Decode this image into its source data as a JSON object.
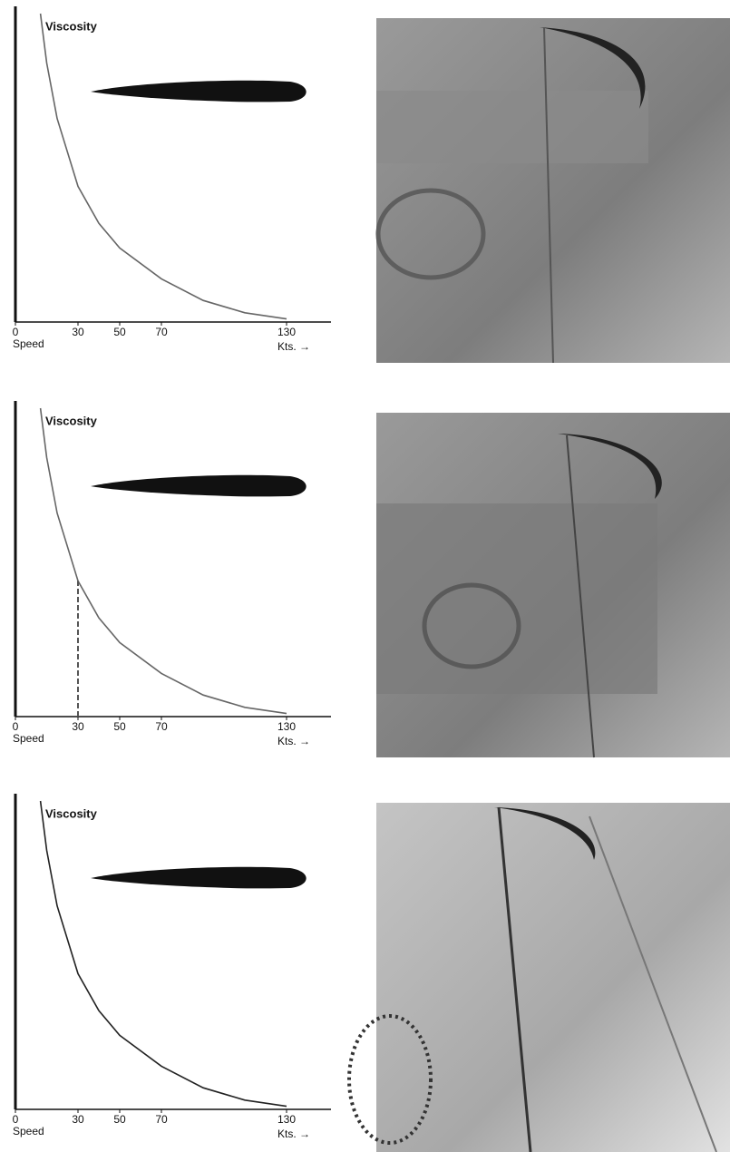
{
  "chart_data": [
    {
      "type": "line",
      "y_label": "Viscosity",
      "x_label": "Speed",
      "x_unit_label": "Kts. →",
      "x": [
        12,
        15,
        20,
        30,
        40,
        50,
        70,
        90,
        110,
        130
      ],
      "values": [
        100,
        84,
        66,
        44,
        32,
        24,
        14,
        7,
        3,
        1
      ],
      "color": "#666666",
      "xlim": [
        0,
        150
      ],
      "xticks": [
        0,
        30,
        50,
        70,
        130
      ],
      "ylim": [
        0,
        100
      ]
    },
    {
      "type": "line",
      "y_label": "Viscosity",
      "x_label": "Speed",
      "x_unit_label": "Kts. →",
      "x": [
        12,
        15,
        20,
        30,
        40,
        50,
        70,
        90,
        110,
        130
      ],
      "values": [
        100,
        84,
        66,
        44,
        32,
        24,
        14,
        7,
        3,
        1
      ],
      "color": "#666666",
      "xlim": [
        0,
        150
      ],
      "xticks": [
        0,
        30,
        50,
        70,
        130
      ],
      "ylim": [
        0,
        100
      ],
      "marker_x": 30
    },
    {
      "type": "line",
      "y_label": "Viscosity",
      "x_label": "Speed",
      "x_unit_label": "Kts. →",
      "x": [
        12,
        15,
        20,
        30,
        40,
        50,
        70,
        90,
        110,
        130
      ],
      "values": [
        100,
        84,
        66,
        44,
        32,
        24,
        14,
        7,
        3,
        1
      ],
      "color": "#222222",
      "xlim": [
        0,
        150
      ],
      "xticks": [
        0,
        30,
        50,
        70,
        130
      ],
      "ylim": [
        0,
        100
      ]
    }
  ]
}
